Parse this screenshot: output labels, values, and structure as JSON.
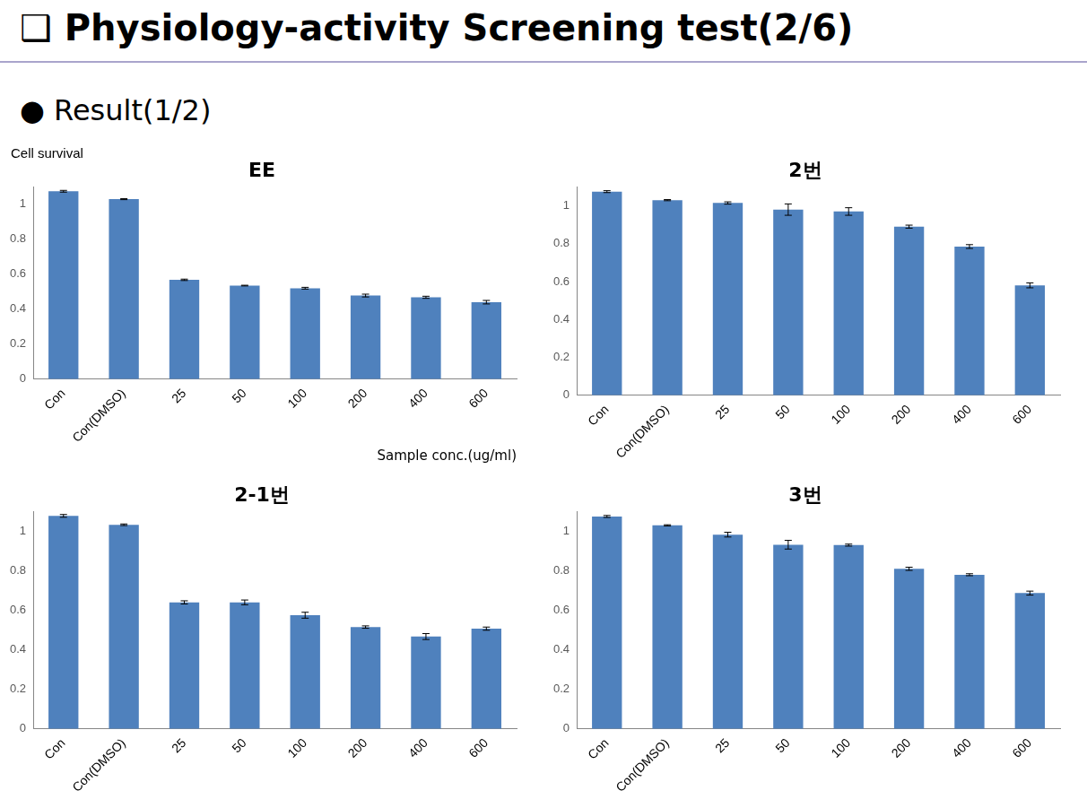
{
  "header": {
    "title": "❑ Physiology-activity Screening test(2/6)",
    "subtitle": "● Result(1/2)"
  },
  "chart_data": [
    {
      "type": "bar",
      "title": "EE",
      "y_label": "Cell survival",
      "x_label": "Sample conc.(ug/ml)",
      "categories": [
        "Con",
        "Con(DMSO)",
        "25",
        "50",
        "100",
        "200",
        "400",
        "600"
      ],
      "values": [
        1.075,
        1.03,
        0.568,
        0.535,
        0.52,
        0.478,
        0.468,
        0.44
      ],
      "errors": [
        0.005,
        0.003,
        0.004,
        0.002,
        0.005,
        0.008,
        0.006,
        0.01
      ],
      "color": "#4f81bd",
      "ylim": [
        0,
        1.1
      ],
      "yticks": [
        0,
        0.2,
        0.4,
        0.6,
        0.8,
        1
      ],
      "grid": false
    },
    {
      "type": "bar",
      "title": "2번",
      "categories": [
        "Con",
        "Con(DMSO)",
        "25",
        "50",
        "100",
        "200",
        "400",
        "600"
      ],
      "values": [
        1.075,
        1.03,
        1.015,
        0.98,
        0.97,
        0.89,
        0.785,
        0.58
      ],
      "errors": [
        0.005,
        0.003,
        0.006,
        0.03,
        0.02,
        0.008,
        0.01,
        0.013
      ],
      "color": "#4f81bd",
      "ylim": [
        0,
        1.1
      ],
      "yticks": [
        0,
        0.2,
        0.4,
        0.6,
        0.8,
        1
      ],
      "grid": false
    },
    {
      "type": "bar",
      "title": "2-1번",
      "categories": [
        "Con",
        "Con(DMSO)",
        "25",
        "50",
        "100",
        "200",
        "400",
        "600"
      ],
      "values": [
        1.078,
        1.033,
        0.64,
        0.64,
        0.575,
        0.515,
        0.467,
        0.507
      ],
      "errors": [
        0.007,
        0.004,
        0.008,
        0.012,
        0.015,
        0.006,
        0.015,
        0.008
      ],
      "color": "#4f81bd",
      "ylim": [
        0,
        1.1
      ],
      "yticks": [
        0,
        0.2,
        0.4,
        0.6,
        0.8,
        1
      ],
      "grid": false
    },
    {
      "type": "bar",
      "title": "3번",
      "categories": [
        "Con",
        "Con(DMSO)",
        "25",
        "50",
        "100",
        "200",
        "400",
        "600"
      ],
      "values": [
        1.075,
        1.03,
        0.983,
        0.932,
        0.93,
        0.81,
        0.78,
        0.687
      ],
      "errors": [
        0.005,
        0.003,
        0.012,
        0.022,
        0.005,
        0.008,
        0.005,
        0.01
      ],
      "color": "#4f81bd",
      "ylim": [
        0,
        1.1
      ],
      "yticks": [
        0,
        0.2,
        0.4,
        0.6,
        0.8,
        1
      ],
      "grid": false
    }
  ]
}
